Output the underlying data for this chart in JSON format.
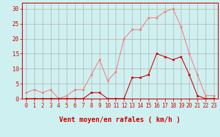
{
  "x": [
    0,
    1,
    2,
    3,
    4,
    5,
    6,
    7,
    8,
    9,
    10,
    11,
    12,
    13,
    14,
    15,
    16,
    17,
    18,
    19,
    20,
    21,
    22,
    23
  ],
  "rafales": [
    2,
    3,
    2,
    3,
    0,
    1,
    3,
    3,
    8,
    13,
    6,
    9,
    20,
    23,
    23,
    27,
    27,
    29,
    30,
    24,
    15,
    8,
    1,
    1
  ],
  "moyen": [
    0,
    0,
    0,
    0,
    0,
    0,
    0,
    0,
    2,
    2,
    0,
    0,
    0,
    7,
    7,
    8,
    15,
    14,
    13,
    14,
    8,
    1,
    0,
    0
  ],
  "line_color_rafales": "#f08080",
  "line_color_moyen": "#cc0000",
  "bg_color": "#cff0f0",
  "grid_color": "#b0b0b0",
  "xlabel": "Vent moyen/en rafales ( km/h )",
  "ylabel_ticks": [
    0,
    5,
    10,
    15,
    20,
    25,
    30
  ],
  "xlim": [
    -0.5,
    23.5
  ],
  "ylim": [
    0,
    32
  ],
  "xlabel_color": "#cc0000",
  "xlabel_fontsize": 7,
  "tick_label_color": "#cc0000",
  "tick_label_fontsize": 5.5,
  "ytick_fontsize": 6,
  "marker_size": 2,
  "line_width": 0.8
}
